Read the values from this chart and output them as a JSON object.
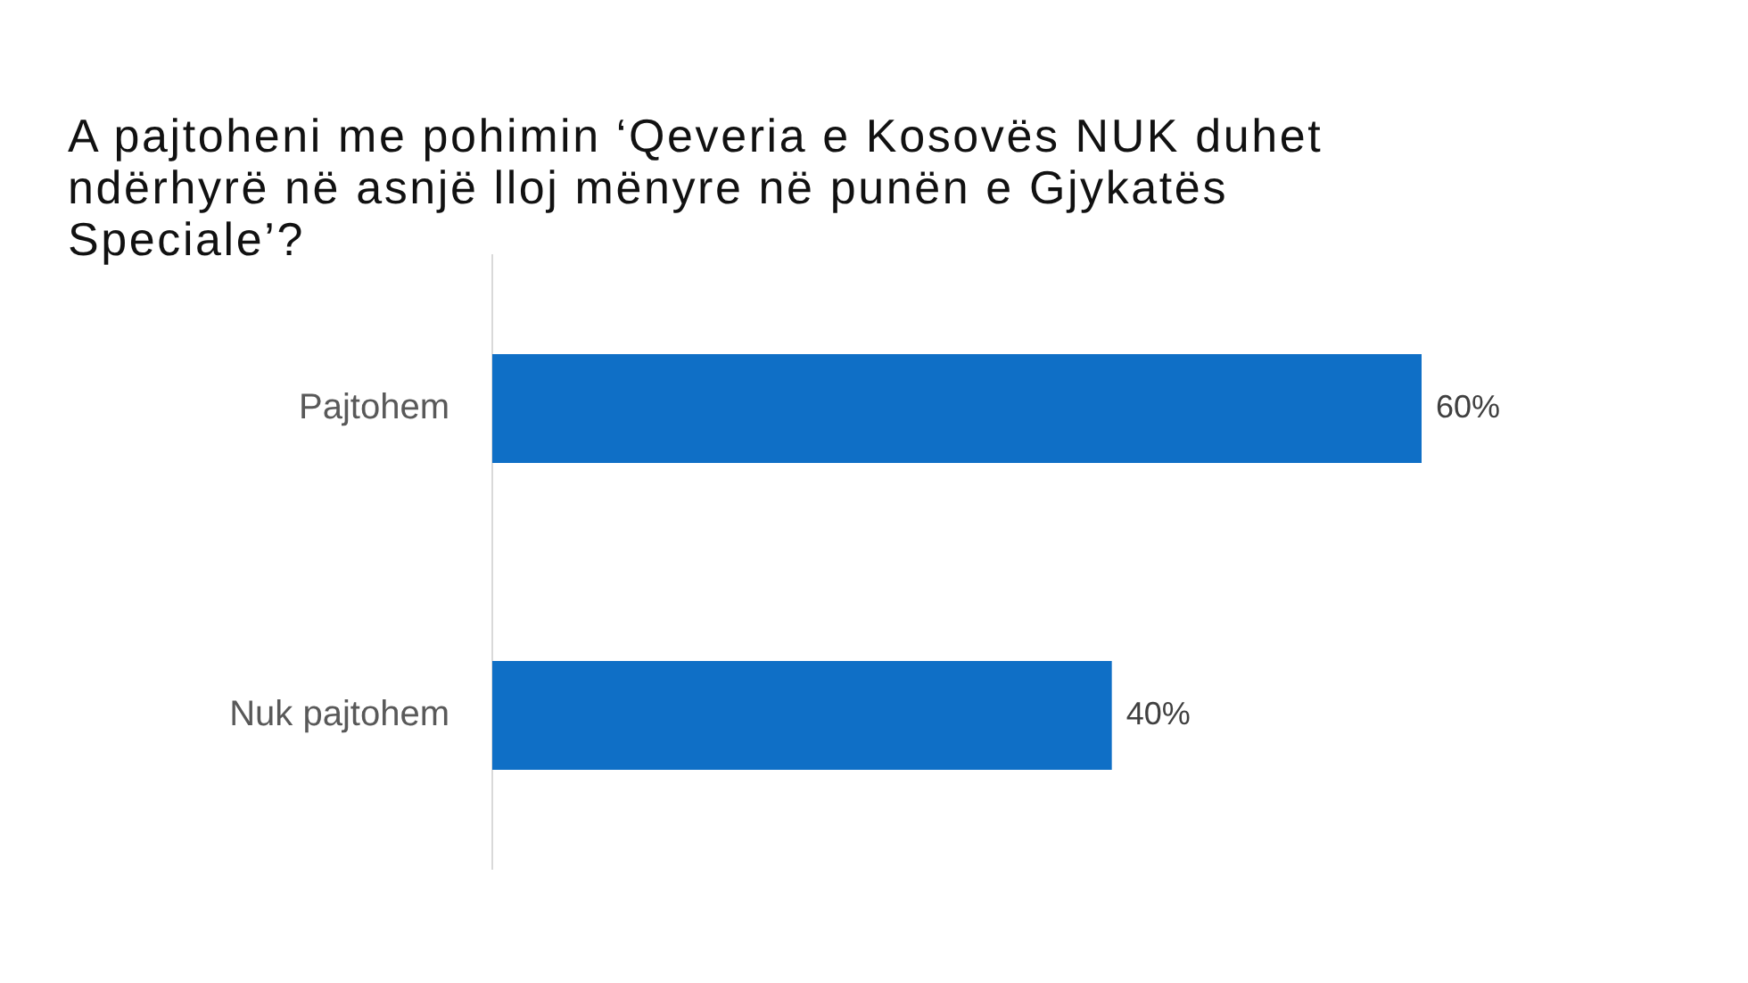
{
  "chart_data": {
    "type": "bar",
    "orientation": "horizontal",
    "title": "A pajtoheni me pohimin ‘Qeveria e Kosovës NUK duhet ndërhyrë në asnjë lloj mënyre në punën e Gjykatës Speciale’?",
    "categories": [
      "Pajtohem",
      "Nuk pajtohem"
    ],
    "values": [
      60,
      40
    ],
    "color": "#0f6fc6",
    "value_labels": [
      "60%",
      "40%"
    ],
    "tick_labels": "y"
  }
}
